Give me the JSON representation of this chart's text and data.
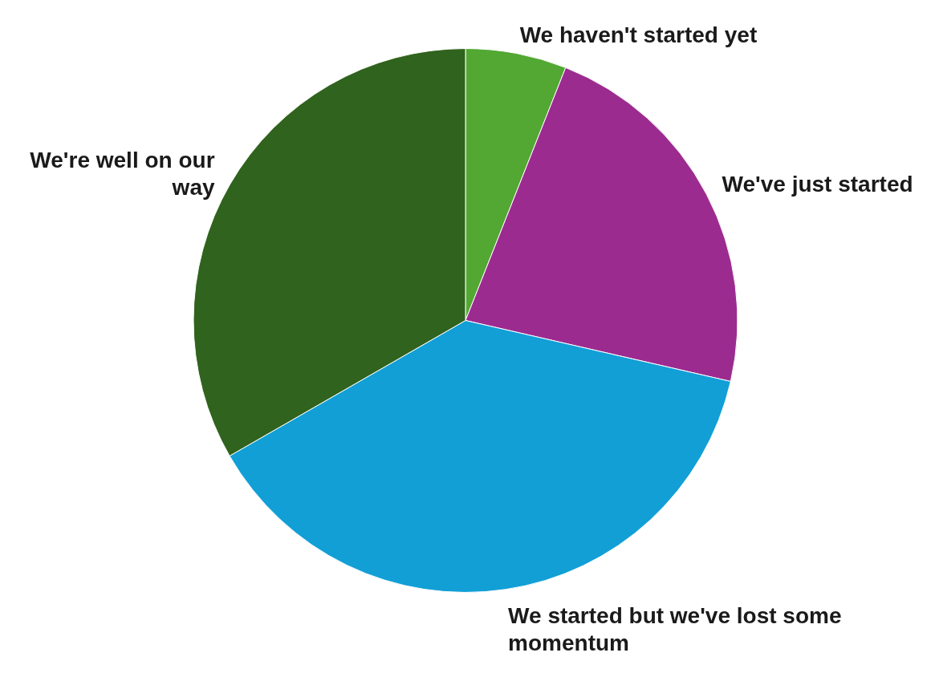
{
  "chart_data": {
    "type": "pie",
    "categories": [
      "We haven't started yet",
      "We've just started",
      "We started but we've lost some momentum",
      "We're well on our way"
    ],
    "values": [
      6,
      22.6,
      38.1,
      33.3
    ],
    "colors": [
      "#52a832",
      "#9c2b90",
      "#119fd6",
      "#30631d"
    ]
  }
}
